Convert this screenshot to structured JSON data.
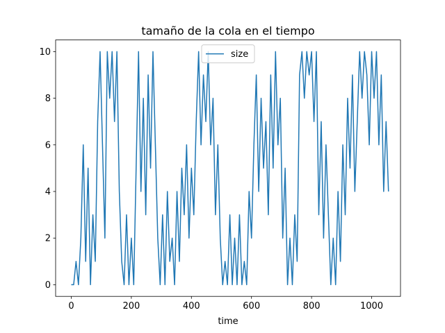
{
  "chart_data": {
    "type": "line",
    "title": "tamaño de la cola en el tiempo",
    "x_label": "time",
    "x": [
      0,
      8,
      16,
      24,
      32,
      40,
      48,
      56,
      64,
      72,
      80,
      88,
      96,
      104,
      112,
      120,
      128,
      136,
      144,
      152,
      160,
      168,
      176,
      184,
      192,
      200,
      208,
      216,
      224,
      232,
      240,
      248,
      256,
      264,
      272,
      280,
      288,
      296,
      304,
      312,
      320,
      328,
      336,
      344,
      352,
      360,
      368,
      376,
      384,
      392,
      400,
      408,
      416,
      424,
      432,
      440,
      448,
      456,
      464,
      472,
      480,
      488,
      496,
      504,
      512,
      520,
      528,
      536,
      544,
      552,
      560,
      568,
      576,
      584,
      592,
      600,
      608,
      616,
      624,
      632,
      640,
      648,
      656,
      664,
      672,
      680,
      688,
      696,
      704,
      712,
      720,
      728,
      736,
      744,
      752,
      760,
      768,
      776,
      784,
      792,
      800,
      808,
      816,
      824,
      832,
      840,
      848,
      856,
      864,
      872,
      880,
      888,
      896,
      904,
      912,
      920,
      928,
      936,
      944,
      952,
      960,
      968,
      976,
      984,
      992,
      1000,
      1008,
      1016,
      1024,
      1032,
      1040,
      1048,
      1056
    ],
    "series": [
      {
        "name": "size",
        "color": "#1f77b4",
        "values": [
          0,
          0,
          1,
          0,
          2,
          6,
          1,
          5,
          0,
          3,
          1,
          7,
          10,
          6,
          2,
          10,
          8,
          10,
          7,
          10,
          4,
          1,
          0,
          3,
          0,
          2,
          0,
          5,
          10,
          4,
          8,
          3,
          9,
          5,
          10,
          6,
          2,
          0,
          3,
          0,
          4,
          1,
          2,
          0,
          4,
          1,
          5,
          3,
          6,
          2,
          5,
          3,
          7,
          10,
          6,
          9,
          7,
          10,
          6,
          8,
          3,
          6,
          2,
          0,
          1,
          0,
          3,
          0,
          2,
          0,
          3,
          0,
          1,
          0,
          4,
          2,
          6,
          9,
          4,
          8,
          5,
          7,
          3,
          9,
          5,
          10,
          6,
          8,
          2,
          5,
          0,
          2,
          0,
          3,
          1,
          9,
          10,
          8,
          10,
          9,
          10,
          7,
          10,
          3,
          7,
          2,
          6,
          3,
          0,
          2,
          0,
          4,
          1,
          6,
          3,
          8,
          5,
          9,
          4,
          7,
          10,
          8,
          10,
          9,
          6,
          10,
          8,
          10,
          6,
          9,
          4,
          7,
          4
        ]
      }
    ],
    "xlim": [
      -52,
      1096
    ],
    "ylim": [
      -0.5,
      10.5
    ],
    "xticks": [
      0,
      200,
      400,
      600,
      800,
      1000
    ],
    "yticks": [
      0,
      2,
      4,
      6,
      8,
      10
    ],
    "legend": "upper center",
    "grid": false
  }
}
